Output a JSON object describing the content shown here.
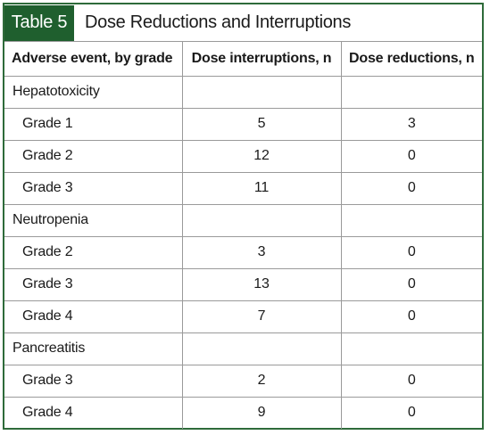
{
  "table": {
    "tag": "Table 5",
    "title": "Dose Reductions and Interruptions",
    "headers": [
      "Adverse event, by grade",
      "Dose interruptions, n",
      "Dose reductions, n"
    ],
    "groups": [
      {
        "name": "Hepatotoxicity",
        "rows": [
          {
            "grade": "Grade 1",
            "interruptions": "5",
            "reductions": "3"
          },
          {
            "grade": "Grade 2",
            "interruptions": "12",
            "reductions": "0"
          },
          {
            "grade": "Grade 3",
            "interruptions": "11",
            "reductions": "0"
          }
        ]
      },
      {
        "name": "Neutropenia",
        "rows": [
          {
            "grade": "Grade 2",
            "interruptions": "3",
            "reductions": "0"
          },
          {
            "grade": "Grade 3",
            "interruptions": "13",
            "reductions": "0"
          },
          {
            "grade": "Grade 4",
            "interruptions": "7",
            "reductions": "0"
          }
        ]
      },
      {
        "name": "Pancreatitis",
        "rows": [
          {
            "grade": "Grade 3",
            "interruptions": "2",
            "reductions": "0"
          },
          {
            "grade": "Grade 4",
            "interruptions": "9",
            "reductions": "0"
          }
        ]
      }
    ]
  },
  "colors": {
    "tag_background": "#1f5f2e",
    "frame_border": "#2e6b3a"
  }
}
